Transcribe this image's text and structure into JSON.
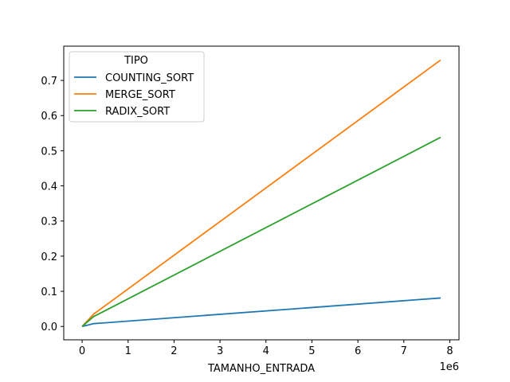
{
  "chart_data": {
    "type": "line",
    "xlabel": "TAMANHO_ENTRADA",
    "ylabel": "",
    "x_offset_label": "1e6",
    "xlim": [
      -0.4,
      8.2
    ],
    "ylim": [
      -0.038,
      0.7975
    ],
    "xticks": [
      0,
      1,
      2,
      3,
      4,
      5,
      6,
      7,
      8
    ],
    "yticks": [
      0.0,
      0.1,
      0.2,
      0.3,
      0.4,
      0.5,
      0.6,
      0.7
    ],
    "ytick_labels": [
      "0.0",
      "0.1",
      "0.2",
      "0.3",
      "0.4",
      "0.5",
      "0.6",
      "0.7"
    ],
    "legend": {
      "title": "TIPO",
      "placement": "top-left"
    },
    "grid": false,
    "series": [
      {
        "name": "COUNTING_SORT",
        "color": "#1f77b4",
        "x": [
          0,
          0.25,
          7.8
        ],
        "y": [
          0.0,
          0.008,
          0.081
        ]
      },
      {
        "name": "MERGE_SORT",
        "color": "#ff7f0e",
        "x": [
          0,
          0.25,
          7.8
        ],
        "y": [
          0.0,
          0.035,
          0.758
        ]
      },
      {
        "name": "RADIX_SORT",
        "color": "#2ca02c",
        "x": [
          0,
          0.25,
          7.8
        ],
        "y": [
          0.0,
          0.028,
          0.538
        ]
      }
    ]
  }
}
